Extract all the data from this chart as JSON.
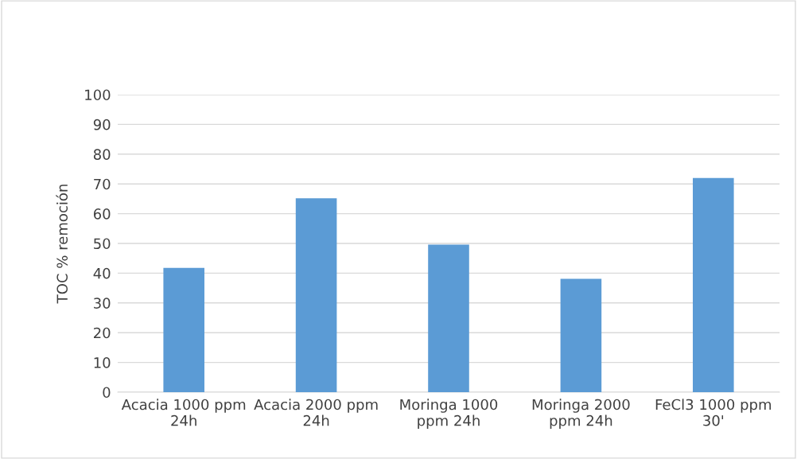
{
  "chart_data": {
    "type": "bar",
    "ylabel": "TOC % remoción",
    "categories": [
      "Acacia 1000 ppm\n24h",
      "Acacia 2000 ppm\n24h",
      "Moringa 1000\nppm 24h",
      "Moringa 2000\nppm 24h",
      "FeCl3 1000 ppm\n30'"
    ],
    "values": [
      41.8,
      65.2,
      49.6,
      38.1,
      72.0
    ],
    "color": "#5b9bd5",
    "ylim": [
      0,
      100
    ],
    "yticks": [
      0,
      10,
      20,
      30,
      40,
      50,
      60,
      70,
      80,
      90,
      100
    ],
    "grid": "y",
    "legend": false
  }
}
